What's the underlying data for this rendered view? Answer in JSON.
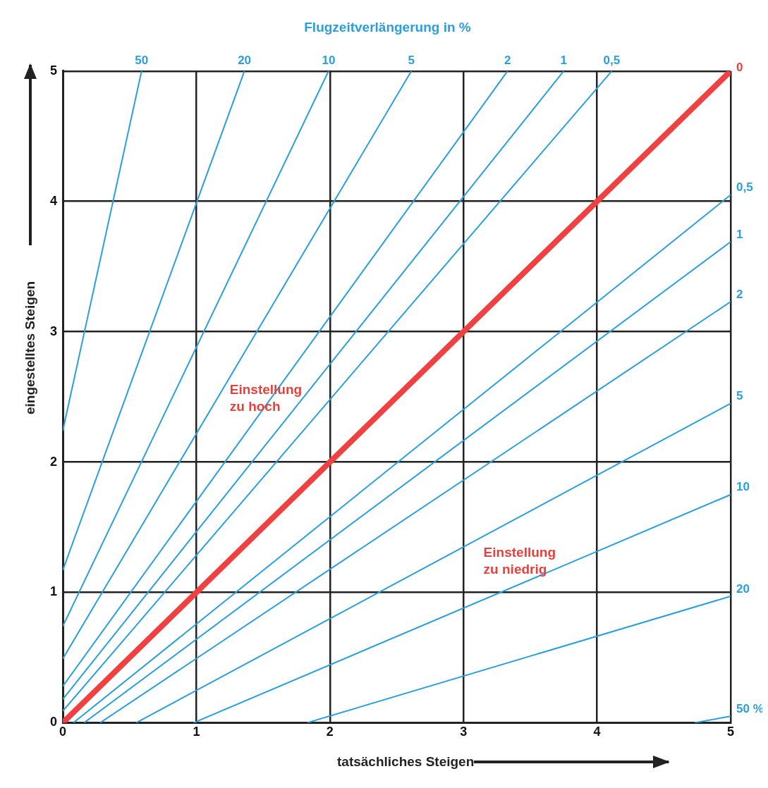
{
  "chart_data": {
    "type": "line",
    "title": "Flugzeitverlängerung in %",
    "xlabel": "tatsächliches Steigen",
    "ylabel": "eingestelltes Steigen",
    "xlim": [
      0,
      5
    ],
    "ylim": [
      0,
      5
    ],
    "xticks": [
      0,
      1,
      2,
      3,
      4,
      5
    ],
    "yticks": [
      0,
      1,
      2,
      3,
      4,
      5
    ],
    "grid": true,
    "legend": false,
    "marker": "none",
    "line_style": "solid",
    "annotations": [
      "Einstellung zu hoch",
      "Einstellung zu niedrig"
    ],
    "series": [
      {
        "name": "50",
        "color": "#2a9fe0",
        "x": [
          0,
          0.59
        ],
        "values": [
          2.24,
          5
        ]
      },
      {
        "name": "20",
        "color": "#2a9fe0",
        "x": [
          0,
          1.36
        ],
        "values": [
          1.17,
          5
        ]
      },
      {
        "name": "10",
        "color": "#2a9fe0",
        "x": [
          0,
          1.99
        ],
        "values": [
          0.74,
          5
        ]
      },
      {
        "name": "5",
        "color": "#2a9fe0",
        "x": [
          0,
          2.61
        ],
        "values": [
          0.49,
          5
        ]
      },
      {
        "name": "2",
        "color": "#2a9fe0",
        "x": [
          0,
          3.33
        ],
        "values": [
          0.28,
          5
        ]
      },
      {
        "name": "1",
        "color": "#2a9fe0",
        "x": [
          0,
          3.75
        ],
        "values": [
          0.18,
          5
        ]
      },
      {
        "name": "0,5",
        "color": "#2a9fe0",
        "x": [
          0,
          4.11
        ],
        "values": [
          0.09,
          5
        ]
      },
      {
        "name": "0",
        "color": "#f04040",
        "x": [
          0,
          5
        ],
        "values": [
          0,
          5
        ]
      },
      {
        "name": "0,5",
        "color": "#2a9fe0",
        "x": [
          0.08,
          5
        ],
        "values": [
          0,
          4.05
        ]
      },
      {
        "name": "1",
        "color": "#2a9fe0",
        "x": [
          0.16,
          5
        ],
        "values": [
          0,
          3.69
        ]
      },
      {
        "name": "2",
        "color": "#2a9fe0",
        "x": [
          0.28,
          5
        ],
        "values": [
          0,
          3.23
        ]
      },
      {
        "name": "5",
        "color": "#2a9fe0",
        "x": [
          0.55,
          5
        ],
        "values": [
          0,
          2.45
        ]
      },
      {
        "name": "10",
        "color": "#2a9fe0",
        "x": [
          0.98,
          5
        ],
        "values": [
          0,
          1.75
        ]
      },
      {
        "name": "20",
        "color": "#2a9fe0",
        "x": [
          1.83,
          5
        ],
        "values": [
          0,
          0.97
        ]
      },
      {
        "name": "50 %",
        "color": "#2a9fe0",
        "x": [
          4.73,
          5
        ],
        "values": [
          0,
          0.05
        ]
      }
    ]
  }
}
